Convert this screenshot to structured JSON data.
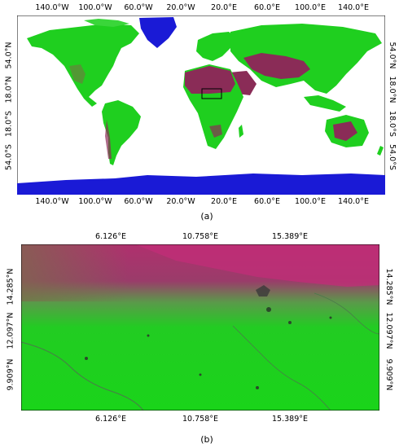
{
  "panel_a": {
    "caption": "(a)",
    "top_ticks": [
      "140.0°W",
      "100.0°W",
      "60.0°W",
      "20.0°W",
      "20.0°E",
      "60.0°E",
      "100.0°E",
      "140.0°E"
    ],
    "bottom_ticks": [
      "140.0°W",
      "100.0°W",
      "60.0°W",
      "20.0°W",
      "20.0°E",
      "60.0°E",
      "100.0°E",
      "140.0°E"
    ],
    "left_ticks": [
      "54.0°N",
      "18.0°N",
      "18.0°S",
      "54.0°S"
    ],
    "right_ticks": [
      "54.0°N",
      "18.0°N",
      "18.0°S",
      "54.0°S"
    ]
  },
  "panel_b": {
    "caption": "(b)",
    "top_ticks": [
      "6.126°E",
      "10.758°E",
      "15.389°E"
    ],
    "bottom_ticks": [
      "6.126°E",
      "10.758°E",
      "15.389°E"
    ],
    "left_ticks": [
      "14.285°N",
      "12.097°N",
      "9.909°N"
    ],
    "right_ticks": [
      "14.285°N",
      "12.097°N",
      "9.909°N"
    ]
  },
  "colors": {
    "ocean": "#ffffff",
    "land": "#1fcf1f",
    "desert": "#8a2c57",
    "ice": "#1a1ad6",
    "sahel_pink": "#b0306e"
  }
}
